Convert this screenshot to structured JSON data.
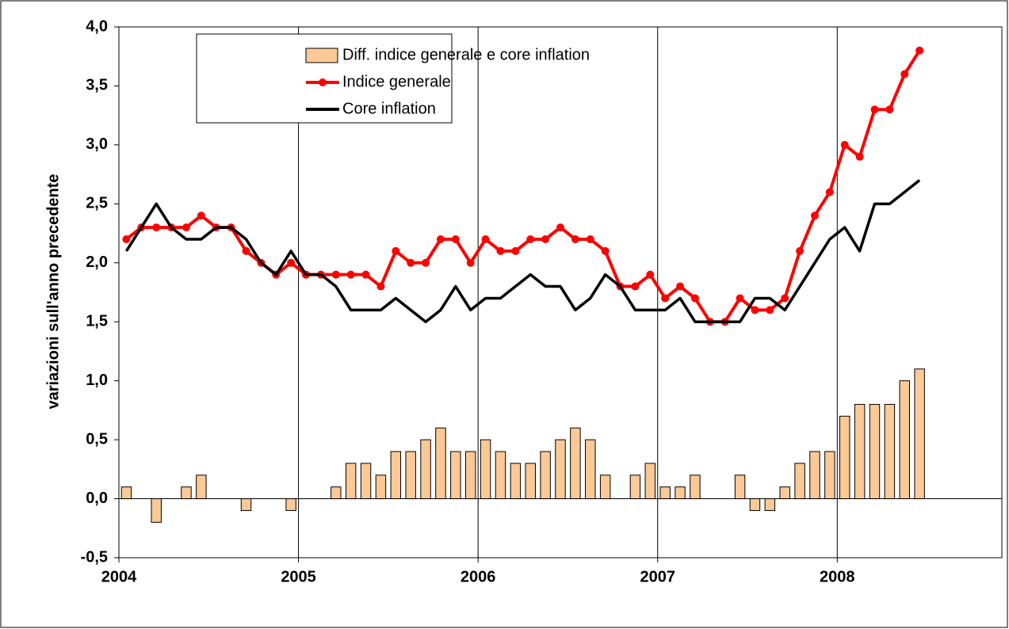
{
  "chart_data": {
    "type": "bar-line",
    "y_label": "variazioni sull'anno precedente",
    "categories": [
      null,
      null,
      null,
      null,
      null,
      null,
      null,
      null,
      null,
      null,
      null,
      null,
      null,
      null,
      null,
      null,
      null,
      null,
      null,
      null,
      null,
      null,
      null,
      null,
      null,
      null,
      null,
      null,
      null,
      null,
      null,
      null,
      null,
      null,
      null,
      null,
      null,
      null,
      null,
      null,
      null,
      null,
      null,
      null,
      null,
      null,
      null,
      null,
      null,
      null,
      null,
      null,
      null,
      null
    ],
    "xlim": [
      0,
      59
    ],
    "xticks": [
      {
        "value": 0,
        "label": "2004"
      },
      {
        "value": 12,
        "label": "2005"
      },
      {
        "value": 24,
        "label": "2006"
      },
      {
        "value": 36,
        "label": "2007"
      },
      {
        "value": 48,
        "label": "2008"
      }
    ],
    "ylim": [
      -0.5,
      4.0
    ],
    "yticks": [
      {
        "value": -0.5,
        "label": "-0,5"
      },
      {
        "value": 0,
        "label": "0,0"
      },
      {
        "value": 0.5,
        "label": "0,5"
      },
      {
        "value": 1.0,
        "label": "1,0"
      },
      {
        "value": 1.5,
        "label": "1,5"
      },
      {
        "value": 2.0,
        "label": "2,0"
      },
      {
        "value": 2.5,
        "label": "2,5"
      },
      {
        "value": 3.0,
        "label": "3,0"
      },
      {
        "value": 3.5,
        "label": "3,5"
      },
      {
        "value": 4.0,
        "label": "4,0"
      }
    ],
    "grid": "x",
    "legend": "top-left",
    "series": [
      {
        "name": "Diff. indice generale e core inflation",
        "kind": "bar",
        "color": "#fbc996",
        "values": [
          0.1,
          0,
          -0.2,
          0,
          0.1,
          0.2,
          0,
          0,
          -0.1,
          0,
          0,
          -0.1,
          0,
          0,
          0.1,
          0.3,
          0.3,
          0.2,
          0.4,
          0.4,
          0.5,
          0.6,
          0.4,
          0.4,
          0.5,
          0.4,
          0.3,
          0.3,
          0.4,
          0.5,
          0.6,
          0.5,
          0.2,
          0,
          0.2,
          0.3,
          0.1,
          0.1,
          0.2,
          0,
          0,
          0.2,
          -0.1,
          -0.1,
          0.1,
          0.3,
          0.4,
          0.4,
          0.7,
          0.8,
          0.8,
          0.8,
          1.0,
          1.1
        ]
      },
      {
        "name": "Indice generale",
        "kind": "line-marker",
        "color": "#ff0000",
        "values": [
          2.2,
          2.3,
          2.3,
          2.3,
          2.3,
          2.4,
          2.3,
          2.3,
          2.1,
          2.0,
          1.9,
          2.0,
          1.9,
          1.9,
          1.9,
          1.9,
          1.9,
          1.8,
          2.1,
          2.0,
          2.0,
          2.2,
          2.2,
          2.0,
          2.2,
          2.1,
          2.1,
          2.2,
          2.2,
          2.3,
          2.2,
          2.2,
          2.1,
          1.8,
          1.8,
          1.9,
          1.7,
          1.8,
          1.7,
          1.5,
          1.5,
          1.7,
          1.6,
          1.6,
          1.7,
          2.1,
          2.4,
          2.6,
          3.0,
          2.9,
          3.3,
          3.3,
          3.6,
          3.8
        ]
      },
      {
        "name": "Core inflation",
        "kind": "line",
        "color": "#000000",
        "values": [
          2.1,
          2.3,
          2.5,
          2.3,
          2.2,
          2.2,
          2.3,
          2.3,
          2.2,
          2.0,
          1.9,
          2.1,
          1.9,
          1.9,
          1.8,
          1.6,
          1.6,
          1.6,
          1.7,
          1.6,
          1.5,
          1.6,
          1.8,
          1.6,
          1.7,
          1.7,
          1.8,
          1.9,
          1.8,
          1.8,
          1.6,
          1.7,
          1.9,
          1.8,
          1.6,
          1.6,
          1.6,
          1.7,
          1.5,
          1.5,
          1.5,
          1.5,
          1.7,
          1.7,
          1.6,
          1.8,
          2.0,
          2.2,
          2.3,
          2.1,
          2.5,
          2.5,
          2.6,
          2.7
        ]
      }
    ]
  }
}
